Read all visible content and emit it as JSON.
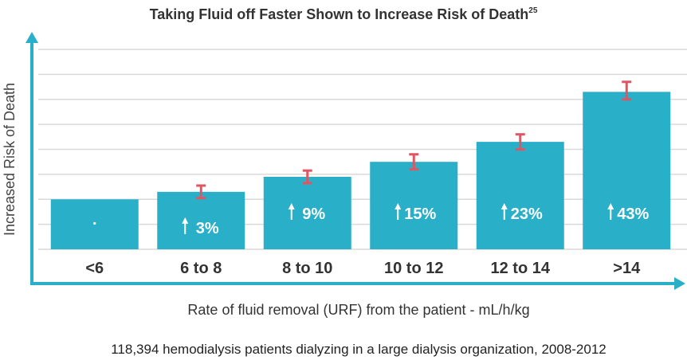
{
  "colors": {
    "bar": "#2aafc9",
    "axis": "#2aafc9",
    "error_bar": "#e05561",
    "grid": "#d9d9d9",
    "text": "#333333"
  },
  "footnote": "118,394 hemodialysis patients dialyzing in a large dialysis organization, 2008-2012",
  "chart_data": {
    "type": "bar",
    "title": "Taking Fluid off Faster Shown to Increase Risk of Death",
    "title_superscript": "25",
    "xlabel": "Rate of fluid removal (URF) from the patient - mL/h/kg",
    "ylabel": "Increased Risk of Death",
    "categories": [
      "<6",
      "6 to 8",
      "8 to 10",
      "10 to 12",
      "12 to 14",
      ">14"
    ],
    "bar_labels": [
      ".",
      "3%",
      "9%",
      "15%",
      "23%",
      "43%"
    ],
    "increase_marker": "up-arrow-icon",
    "series": [
      {
        "values": [
          0,
          3,
          9,
          15,
          23,
          43
        ]
      }
    ],
    "error_bars": [
      null,
      {
        "low": 0.5,
        "high": 5.5
      },
      {
        "low": 6.5,
        "high": 11.5
      },
      {
        "low": 12,
        "high": 18
      },
      {
        "low": 20,
        "high": 26
      },
      {
        "low": 40,
        "high": 47
      }
    ],
    "ylim": [
      -20,
      60
    ],
    "grid": true,
    "legend": "none"
  }
}
